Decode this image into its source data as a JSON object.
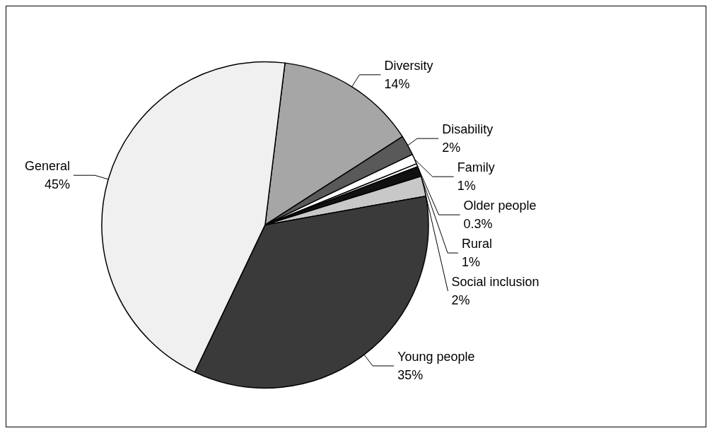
{
  "chart_data": {
    "type": "pie",
    "categories": [
      "Diversity",
      "Disability",
      "Family",
      "Older people",
      "Rural",
      "Social inclusion",
      "Young people",
      "General"
    ],
    "values": [
      14,
      2,
      1,
      0.3,
      1,
      2,
      35,
      45
    ],
    "value_labels": [
      "14%",
      "2%",
      "1%",
      "0.3%",
      "1%",
      "2%",
      "35%",
      "45%"
    ],
    "colors": [
      "#a6a6a6",
      "#595959",
      "#ffffff",
      "#ffffff",
      "#111111",
      "#c8c8c8",
      "#3a3a3a",
      "#f0f0f0"
    ],
    "legend": false
  }
}
